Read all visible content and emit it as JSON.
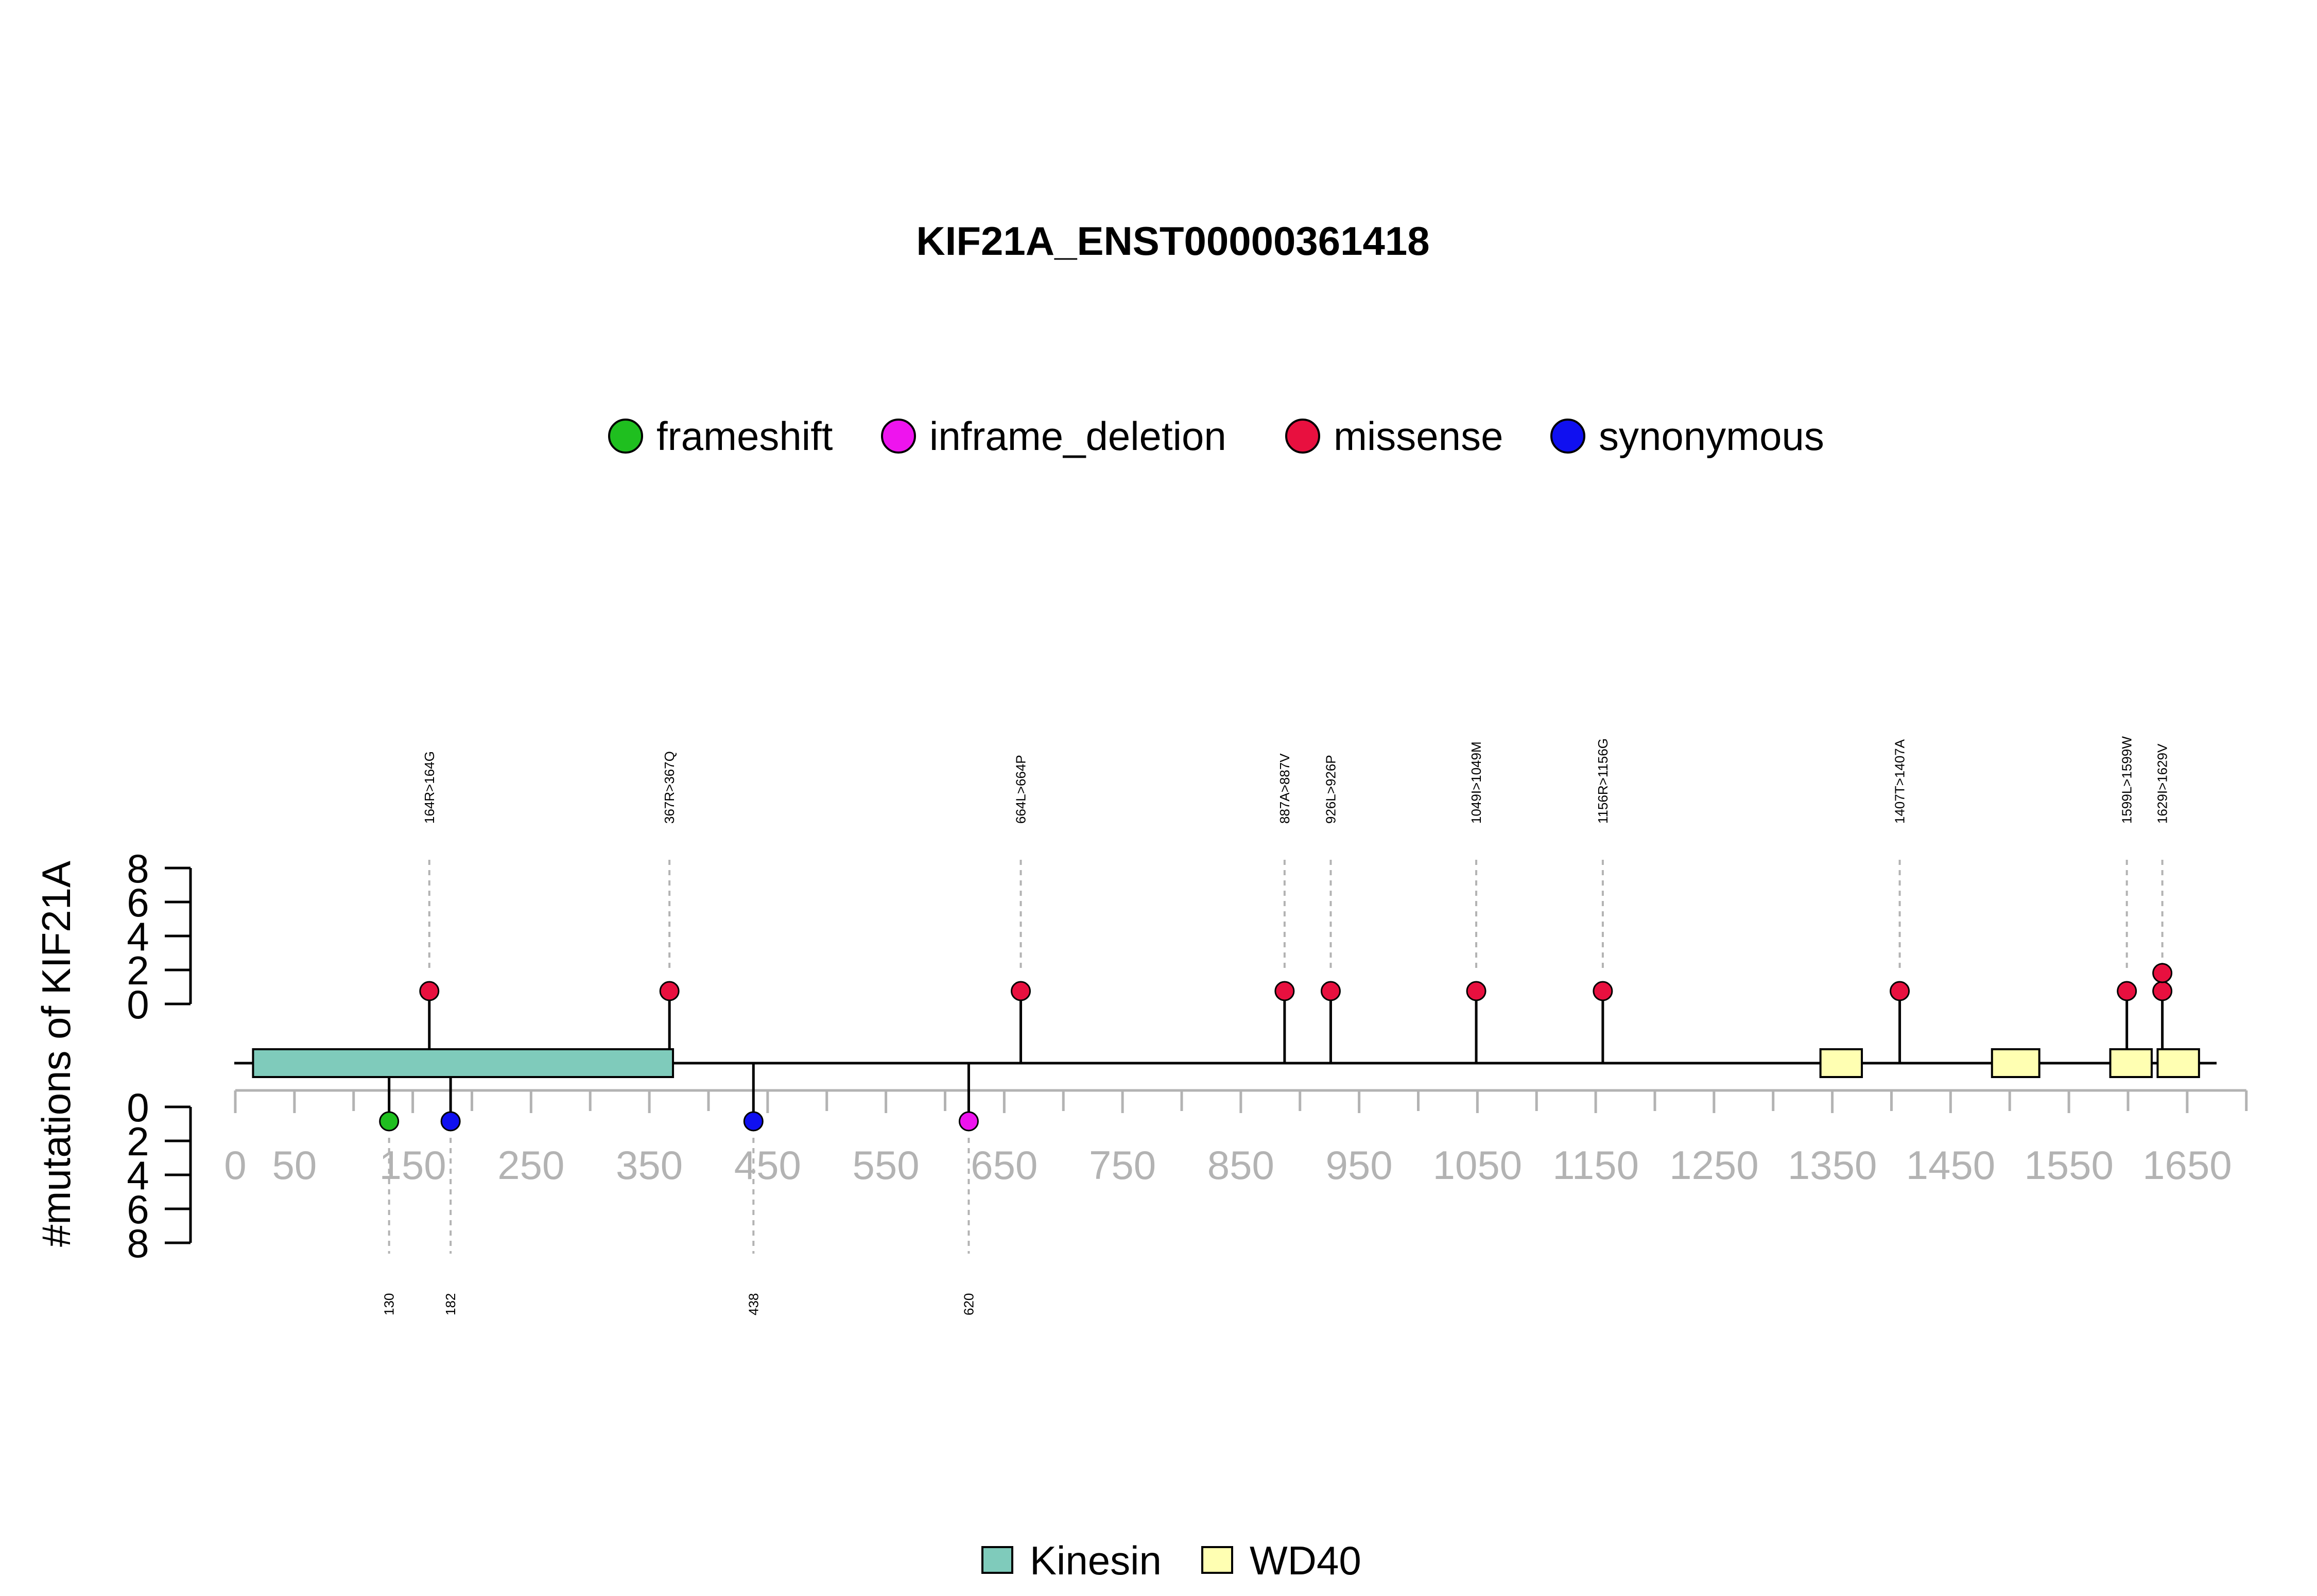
{
  "chart_data": {
    "type": "lollipop",
    "title": "KIF21A_ENST00000361418",
    "ylabel": "#mutations of KIF21A",
    "protein_length": 1674,
    "x_ticks": [
      0,
      50,
      150,
      250,
      350,
      450,
      550,
      650,
      750,
      850,
      950,
      1050,
      1150,
      1250,
      1350,
      1450,
      1550,
      1650
    ],
    "y_ticks_upper": [
      "8",
      "6",
      "4",
      "2",
      "0"
    ],
    "y_ticks_lower": [
      "0",
      "2",
      "4",
      "6",
      "8"
    ],
    "mutation_types": [
      {
        "name": "frameshift",
        "color": "#1fbf1f"
      },
      {
        "name": "inframe_deletion",
        "color": "#ee14ee"
      },
      {
        "name": "missense",
        "color": "#e8103f"
      },
      {
        "name": "synonymous",
        "color": "#1010f0"
      }
    ],
    "domains": [
      {
        "name": "Kinesin",
        "color": "#7fcbbb",
        "legend": true
      },
      {
        "name": "WD40",
        "color": "#ffffb2",
        "legend": true
      }
    ],
    "domain_regions": [
      {
        "name": "Kinesin",
        "start": 15,
        "end": 370
      },
      {
        "name": "WD40",
        "start": 1340,
        "end": 1375
      },
      {
        "name": "WD40",
        "start": 1485,
        "end": 1525
      },
      {
        "name": "WD40",
        "start": 1585,
        "end": 1620
      },
      {
        "name": "WD40",
        "start": 1625,
        "end": 1660
      }
    ],
    "mutations_above": [
      {
        "label": "164R>164G",
        "position": 164,
        "count": 1,
        "type": "missense"
      },
      {
        "label": "367R>367Q",
        "position": 367,
        "count": 1,
        "type": "missense"
      },
      {
        "label": "664L>664P",
        "position": 664,
        "count": 1,
        "type": "missense"
      },
      {
        "label": "887A>887V",
        "position": 887,
        "count": 1,
        "type": "missense"
      },
      {
        "label": "926L>926P",
        "position": 926,
        "count": 1,
        "type": "missense"
      },
      {
        "label": "1049I>1049M",
        "position": 1049,
        "count": 1,
        "type": "missense"
      },
      {
        "label": "1156R>1156G",
        "position": 1156,
        "count": 1,
        "type": "missense"
      },
      {
        "label": "1407T>1407A",
        "position": 1407,
        "count": 1,
        "type": "missense"
      },
      {
        "label": "1599L>1599W",
        "position": 1599,
        "count": 1,
        "type": "missense"
      },
      {
        "label": "1629I>1629V",
        "position": 1629,
        "count": 2,
        "type": "missense"
      }
    ],
    "mutations_below": [
      {
        "label": "130",
        "position": 130,
        "count": 1,
        "type": "frameshift"
      },
      {
        "label": "182",
        "position": 182,
        "count": 1,
        "type": "synonymous"
      },
      {
        "label": "438",
        "position": 438,
        "count": 1,
        "type": "synonymous"
      },
      {
        "label": "620",
        "position": 620,
        "count": 1,
        "type": "inframe_deletion"
      }
    ]
  }
}
